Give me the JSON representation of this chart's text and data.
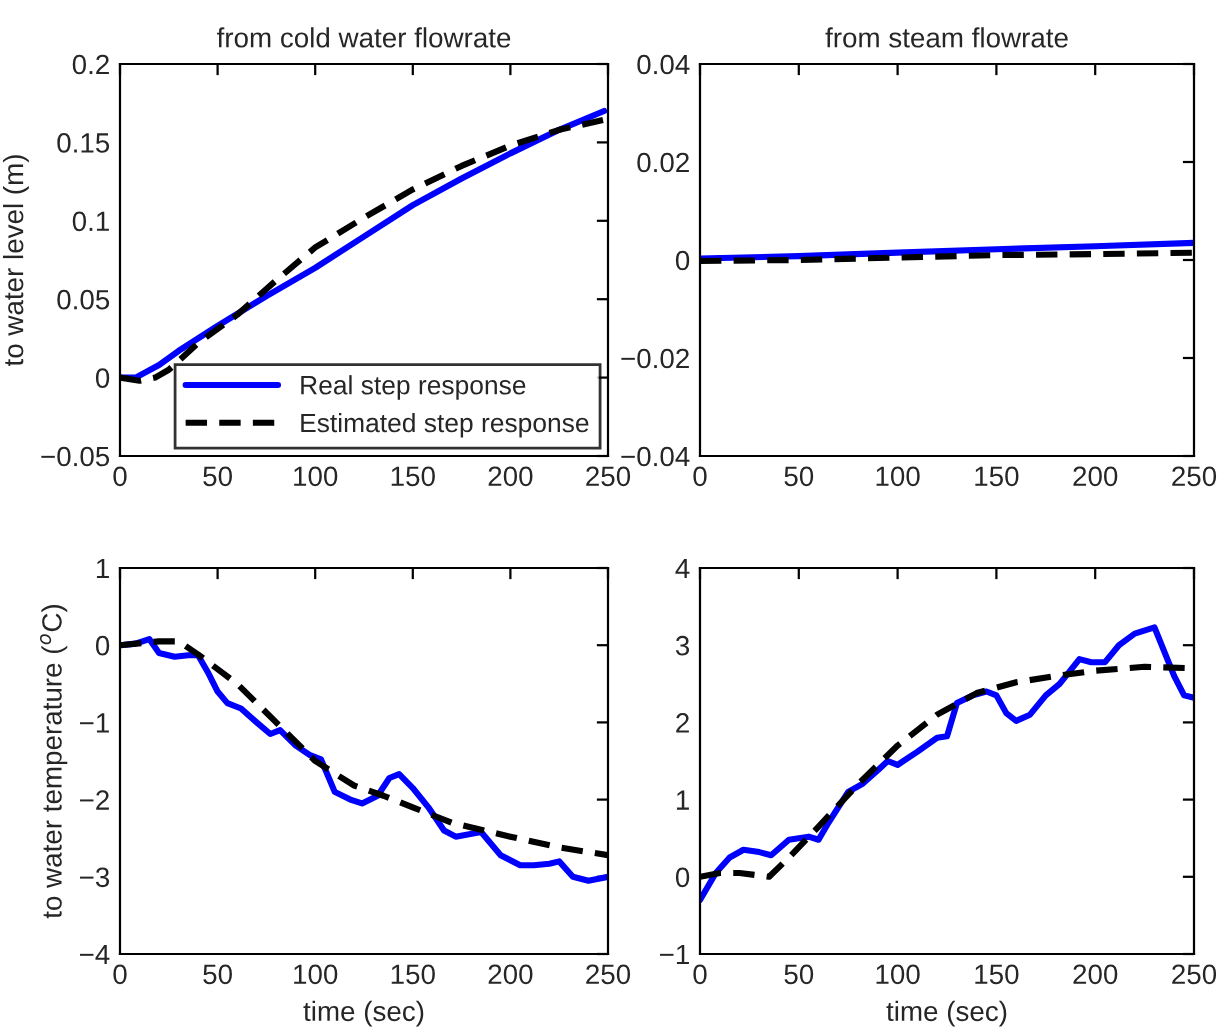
{
  "chart_data": [
    {
      "type": "line",
      "title": "from cold water flowrate",
      "ylabel": "to water level (m)",
      "xlim": [
        0,
        250
      ],
      "xticks": [
        0,
        50,
        100,
        150,
        200,
        250
      ],
      "ylim": [
        -0.05,
        0.2
      ],
      "yticks": [
        {
          "value": -0.05,
          "label": "−0.05"
        },
        0,
        0.05,
        0.1,
        0.15,
        0.2
      ],
      "grid": false,
      "legend": "bottom right",
      "series": [
        {
          "name": "Real step response",
          "color": "#0000ff",
          "line_style": "solid",
          "x": [
            0,
            8,
            20,
            30,
            50,
            75,
            100,
            125,
            150,
            175,
            200,
            225,
            248
          ],
          "values": [
            0,
            0,
            0.008,
            0.017,
            0.033,
            0.052,
            0.07,
            0.09,
            0.11,
            0.127,
            0.143,
            0.158,
            0.17
          ]
        },
        {
          "name": "Estimated step response",
          "color": "#000000",
          "line_style": "dashed",
          "x": [
            0,
            10,
            18,
            25,
            40,
            60,
            80,
            100,
            125,
            150,
            175,
            200,
            225,
            250
          ],
          "values": [
            0,
            -0.002,
            0,
            0.005,
            0.022,
            0.04,
            0.062,
            0.083,
            0.102,
            0.12,
            0.135,
            0.148,
            0.158,
            0.165
          ]
        }
      ]
    },
    {
      "type": "line",
      "title": "from steam flowrate",
      "xlim": [
        0,
        250
      ],
      "xticks": [
        0,
        50,
        100,
        150,
        200,
        250
      ],
      "ylim": [
        -0.04,
        0.04
      ],
      "yticks": [
        {
          "value": -0.04,
          "label": "−0.04"
        },
        {
          "value": -0.02,
          "label": "−0.02"
        },
        0,
        0.02,
        0.04
      ],
      "grid": false,
      "series": [
        {
          "color": "#0000ff",
          "line_style": "solid",
          "x": [
            0,
            50,
            100,
            150,
            200,
            250
          ],
          "values": [
            0.0003,
            0.0008,
            0.0015,
            0.0022,
            0.0028,
            0.0035
          ]
        },
        {
          "color": "#000000",
          "line_style": "dashed",
          "x": [
            0,
            50,
            100,
            150,
            200,
            250
          ],
          "values": [
            -0.0002,
            0,
            0.0005,
            0.001,
            0.0012,
            0.0015
          ]
        }
      ]
    },
    {
      "type": "line",
      "xlabel": "time (sec)",
      "ylabel": "to water temperature ($^{o}$C)",
      "xlim": [
        0,
        250
      ],
      "xticks": [
        0,
        50,
        100,
        150,
        200,
        250
      ],
      "ylim": [
        -4,
        1
      ],
      "yticks": [
        {
          "value": -4,
          "label": "−4"
        },
        {
          "value": -3,
          "label": "−3"
        },
        {
          "value": -2,
          "label": "−2"
        },
        {
          "value": -1,
          "label": "−1"
        },
        0,
        1
      ],
      "grid": false,
      "series": [
        {
          "color": "#0000ff",
          "line_style": "solid",
          "x": [
            0,
            8,
            15,
            20,
            28,
            35,
            40,
            45,
            50,
            55,
            62,
            70,
            77,
            82,
            90,
            97,
            103,
            110,
            118,
            124,
            132,
            138,
            143,
            150,
            158,
            166,
            172,
            185,
            195,
            205,
            212,
            220,
            225,
            232,
            240,
            250
          ],
          "values": [
            0,
            0.02,
            0.08,
            -0.1,
            -0.15,
            -0.13,
            -0.13,
            -0.35,
            -0.6,
            -0.75,
            -0.82,
            -1.0,
            -1.15,
            -1.1,
            -1.3,
            -1.42,
            -1.48,
            -1.9,
            -2.0,
            -2.05,
            -1.95,
            -1.72,
            -1.67,
            -1.85,
            -2.1,
            -2.4,
            -2.48,
            -2.42,
            -2.72,
            -2.85,
            -2.85,
            -2.83,
            -2.8,
            -3.0,
            -3.05,
            -3.0
          ]
        },
        {
          "color": "#000000",
          "line_style": "dashed",
          "x": [
            0,
            20,
            30,
            40,
            60,
            80,
            100,
            120,
            135,
            150,
            170,
            200,
            225,
            250
          ],
          "values": [
            0,
            0.05,
            0.05,
            -0.12,
            -0.5,
            -1.0,
            -1.5,
            -1.82,
            -1.95,
            -2.1,
            -2.3,
            -2.48,
            -2.62,
            -2.72
          ]
        }
      ]
    },
    {
      "type": "line",
      "xlabel": "time (sec)",
      "xlim": [
        0,
        250
      ],
      "xticks": [
        0,
        50,
        100,
        150,
        200,
        250
      ],
      "ylim": [
        -1,
        4
      ],
      "yticks": [
        {
          "value": -1,
          "label": "−1"
        },
        0,
        1,
        2,
        3,
        4
      ],
      "grid": false,
      "series": [
        {
          "color": "#0000ff",
          "line_style": "solid",
          "x": [
            0,
            8,
            15,
            22,
            30,
            36,
            45,
            55,
            60,
            65,
            75,
            82,
            90,
            95,
            100,
            110,
            120,
            125,
            130,
            138,
            145,
            150,
            155,
            160,
            167,
            175,
            182,
            192,
            198,
            205,
            212,
            220,
            230,
            240,
            245,
            250
          ],
          "values": [
            -0.3,
            0.05,
            0.25,
            0.35,
            0.32,
            0.28,
            0.48,
            0.52,
            0.48,
            0.7,
            1.1,
            1.2,
            1.38,
            1.5,
            1.45,
            1.62,
            1.8,
            1.82,
            2.25,
            2.35,
            2.4,
            2.35,
            2.12,
            2.02,
            2.1,
            2.35,
            2.5,
            2.82,
            2.78,
            2.78,
            3.0,
            3.15,
            3.23,
            2.6,
            2.35,
            2.32
          ]
        },
        {
          "color": "#000000",
          "line_style": "dashed",
          "x": [
            0,
            10,
            20,
            35,
            45,
            60,
            80,
            100,
            120,
            140,
            160,
            180,
            200,
            225,
            250
          ],
          "values": [
            0,
            0.05,
            0.05,
            0.0,
            0.25,
            0.65,
            1.2,
            1.7,
            2.1,
            2.38,
            2.52,
            2.6,
            2.67,
            2.72,
            2.7
          ]
        }
      ]
    }
  ]
}
